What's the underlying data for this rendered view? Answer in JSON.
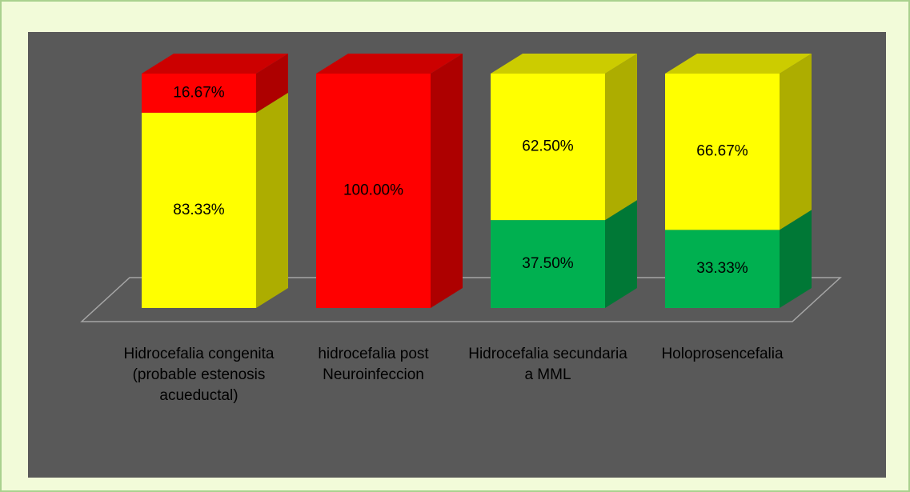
{
  "chart_data": {
    "type": "bar3d_stacked",
    "categories": [
      "Hidrocefalia congenita (probable estenosis acueductal)",
      "hidrocefalia post Neuroinfeccion",
      "Hidrocefalia secundaria a MML",
      "Holoprosencefalia"
    ],
    "series": [
      {
        "color": "#00b050",
        "values": [
          0,
          0,
          37.5,
          33.33
        ],
        "value_labels": [
          null,
          null,
          "37.50%",
          "33.33%"
        ]
      },
      {
        "color": "#ffff00",
        "values": [
          83.33,
          0,
          62.5,
          66.67
        ],
        "value_labels": [
          "83.33%",
          null,
          "62.50%",
          "66.67%"
        ]
      },
      {
        "color": "#ff0000",
        "values": [
          16.67,
          100,
          0,
          0
        ],
        "value_labels": [
          "16.67%",
          "100.00%",
          null,
          null
        ]
      }
    ]
  }
}
